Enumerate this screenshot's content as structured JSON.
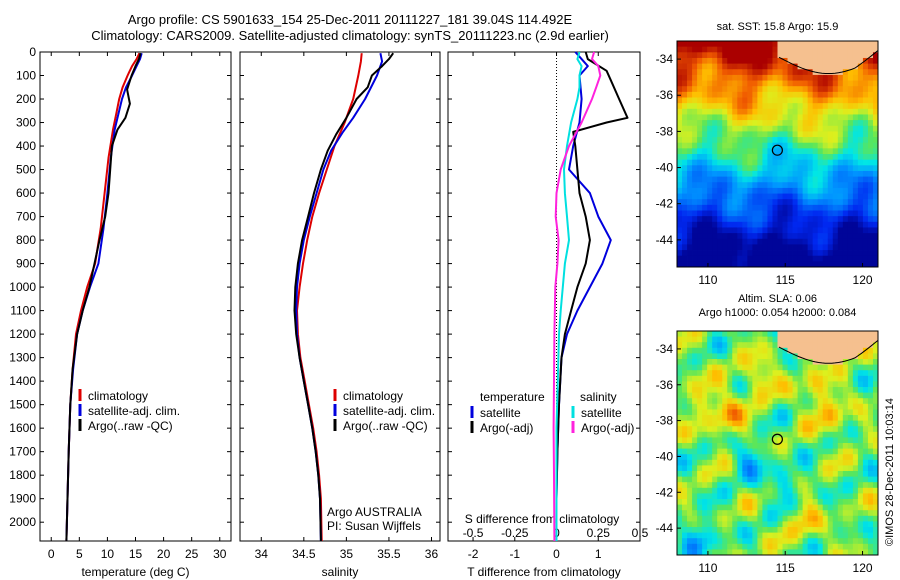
{
  "header": {
    "title_line1": "Argo profile: CS 5901633_154 25-Dec-2011 20111227_181 39.04S 114.492E",
    "title_line2": "Climatology: CARS2009. Satellite-adjusted climatology: synTS_20111223.nc (2.9d earlier)"
  },
  "colors": {
    "climatology": "#dd0000",
    "satellite": "#0000dd",
    "argo": "#000000",
    "sat_t_diff": "#00e0e0",
    "sat_s_diff": "#ff22dd",
    "land": "#f5c08f"
  },
  "chart_data": [
    {
      "type": "line",
      "name": "temperature-profile",
      "xlabel": "temperature (deg C)",
      "ylabel": "",
      "xlim": [
        -2,
        32
      ],
      "ylim": [
        2080,
        0
      ],
      "y_reversed": true,
      "xticks": [
        0,
        5,
        10,
        15,
        20,
        25,
        30
      ],
      "yticks": [
        0,
        100,
        200,
        300,
        400,
        500,
        600,
        700,
        800,
        900,
        1000,
        1100,
        1200,
        1300,
        1400,
        1500,
        1600,
        1700,
        1800,
        1900,
        2000
      ],
      "legend": [
        "climatology",
        "satellite-adj. clim.",
        "Argo(..raw -QC)"
      ],
      "series": [
        {
          "name": "climatology",
          "color": "#dd0000",
          "points": [
            [
              15.7,
              5
            ],
            [
              15.2,
              30
            ],
            [
              14.4,
              60
            ],
            [
              13.6,
              100
            ],
            [
              12.7,
              150
            ],
            [
              12.1,
              200
            ],
            [
              11.6,
              260
            ],
            [
              11.0,
              330
            ],
            [
              10.2,
              450
            ],
            [
              9.5,
              600
            ],
            [
              8.8,
              750
            ],
            [
              7.8,
              900
            ],
            [
              6.4,
              1000
            ],
            [
              5.3,
              1100
            ],
            [
              4.4,
              1200
            ],
            [
              3.8,
              1350
            ],
            [
              3.4,
              1500
            ],
            [
              3.1,
              1700
            ],
            [
              2.9,
              1900
            ],
            [
              2.7,
              2080
            ]
          ]
        },
        {
          "name": "satellite-adj. clim.",
          "color": "#0000dd",
          "points": [
            [
              16.1,
              5
            ],
            [
              15.8,
              30
            ],
            [
              15.2,
              60
            ],
            [
              14.4,
              100
            ],
            [
              13.3,
              150
            ],
            [
              12.6,
              200
            ],
            [
              12.0,
              260
            ],
            [
              11.3,
              330
            ],
            [
              10.6,
              450
            ],
            [
              10.0,
              600
            ],
            [
              9.3,
              750
            ],
            [
              8.4,
              900
            ],
            [
              6.9,
              1000
            ],
            [
              5.6,
              1100
            ],
            [
              4.6,
              1200
            ],
            [
              3.9,
              1350
            ],
            [
              3.4,
              1500
            ],
            [
              3.1,
              1700
            ],
            [
              2.9,
              1900
            ],
            [
              2.7,
              2080
            ]
          ]
        },
        {
          "name": "Argo(..raw -QC)",
          "color": "#000000",
          "points": [
            [
              15.9,
              5
            ],
            [
              15.6,
              30
            ],
            [
              15.0,
              60
            ],
            [
              14.3,
              100
            ],
            [
              13.5,
              160
            ],
            [
              14.0,
              220
            ],
            [
              13.2,
              280
            ],
            [
              11.8,
              330
            ],
            [
              10.8,
              400
            ],
            [
              10.5,
              500
            ],
            [
              10.2,
              600
            ],
            [
              9.6,
              700
            ],
            [
              8.6,
              800
            ],
            [
              7.7,
              900
            ],
            [
              6.8,
              1000
            ],
            [
              5.6,
              1100
            ],
            [
              4.6,
              1200
            ],
            [
              3.8,
              1350
            ],
            [
              3.4,
              1500
            ],
            [
              3.1,
              1700
            ],
            [
              2.9,
              1900
            ],
            [
              2.7,
              2080
            ]
          ]
        }
      ]
    },
    {
      "type": "line",
      "name": "salinity-profile",
      "xlabel": "salinity",
      "ylabel": "",
      "xlim": [
        33.75,
        36.1
      ],
      "ylim": [
        2080,
        0
      ],
      "y_reversed": true,
      "xticks": [
        34,
        34.5,
        35,
        35.5,
        36
      ],
      "yticks": [
        0,
        100,
        200,
        300,
        400,
        500,
        600,
        700,
        800,
        900,
        1000,
        1100,
        1200,
        1300,
        1400,
        1500,
        1600,
        1700,
        1800,
        1900,
        2000
      ],
      "legend": [
        "climatology",
        "satellite-adj. clim.",
        "Argo(..raw -QC)"
      ],
      "annotations": [
        "Argo AUSTRALIA",
        "PI: Susan Wijffels"
      ],
      "series": [
        {
          "name": "climatology",
          "color": "#dd0000",
          "points": [
            [
              35.18,
              5
            ],
            [
              35.17,
              40
            ],
            [
              35.14,
              100
            ],
            [
              35.08,
              200
            ],
            [
              34.98,
              300
            ],
            [
              34.86,
              400
            ],
            [
              34.77,
              500
            ],
            [
              34.68,
              600
            ],
            [
              34.6,
              700
            ],
            [
              34.54,
              800
            ],
            [
              34.49,
              900
            ],
            [
              34.45,
              1000
            ],
            [
              34.42,
              1100
            ],
            [
              34.43,
              1200
            ],
            [
              34.46,
              1300
            ],
            [
              34.51,
              1400
            ],
            [
              34.56,
              1500
            ],
            [
              34.61,
              1600
            ],
            [
              34.65,
              1700
            ],
            [
              34.68,
              1800
            ],
            [
              34.7,
              1900
            ],
            [
              34.71,
              2080
            ]
          ]
        },
        {
          "name": "satellite-adj. clim.",
          "color": "#0000dd",
          "points": [
            [
              35.4,
              5
            ],
            [
              35.42,
              40
            ],
            [
              35.36,
              100
            ],
            [
              35.22,
              200
            ],
            [
              35.08,
              280
            ],
            [
              34.96,
              340
            ],
            [
              34.82,
              420
            ],
            [
              34.73,
              500
            ],
            [
              34.65,
              600
            ],
            [
              34.57,
              700
            ],
            [
              34.5,
              800
            ],
            [
              34.45,
              900
            ],
            [
              34.42,
              1000
            ],
            [
              34.41,
              1100
            ],
            [
              34.42,
              1200
            ],
            [
              34.45,
              1300
            ],
            [
              34.5,
              1400
            ],
            [
              34.55,
              1500
            ],
            [
              34.6,
              1600
            ],
            [
              34.64,
              1700
            ],
            [
              34.67,
              1800
            ],
            [
              34.69,
              1900
            ],
            [
              34.7,
              2080
            ]
          ]
        },
        {
          "name": "Argo(..raw -QC)",
          "color": "#000000",
          "points": [
            [
              35.55,
              5
            ],
            [
              35.5,
              30
            ],
            [
              35.42,
              60
            ],
            [
              35.3,
              100
            ],
            [
              35.25,
              150
            ],
            [
              35.12,
              200
            ],
            [
              35.0,
              280
            ],
            [
              34.88,
              350
            ],
            [
              34.78,
              420
            ],
            [
              34.7,
              500
            ],
            [
              34.62,
              600
            ],
            [
              34.55,
              700
            ],
            [
              34.48,
              800
            ],
            [
              34.43,
              900
            ],
            [
              34.4,
              1000
            ],
            [
              34.39,
              1100
            ],
            [
              34.41,
              1200
            ],
            [
              34.45,
              1300
            ],
            [
              34.5,
              1400
            ],
            [
              34.55,
              1500
            ],
            [
              34.6,
              1600
            ],
            [
              34.64,
              1700
            ],
            [
              34.67,
              1800
            ],
            [
              34.69,
              1900
            ],
            [
              34.7,
              2080
            ]
          ]
        }
      ]
    },
    {
      "type": "line",
      "name": "difference-from-climatology",
      "xlabel": "T difference from climatology",
      "xlabel_top": "S difference from climatology",
      "xlim": [
        -2.6,
        2.0
      ],
      "ylim": [
        2080,
        0
      ],
      "y_reversed": true,
      "xticks": [
        -2,
        -1,
        0,
        1
      ],
      "xtick_labels": [
        "-2",
        "-1",
        "0",
        "1"
      ],
      "sticks": [
        "-0.5",
        "-0.25",
        "0",
        "0.25",
        "0.5"
      ],
      "sticks_pos": [
        -2,
        -1,
        0,
        1,
        2
      ],
      "yticks": [
        0,
        100,
        200,
        300,
        400,
        500,
        600,
        700,
        800,
        900,
        1000,
        1100,
        1200,
        1300,
        1400,
        1500,
        1600,
        1700,
        1800,
        1900,
        2000
      ],
      "legend_temperature": {
        "title": "temperature",
        "items": [
          "satellite",
          "Argo(-adj)"
        ]
      },
      "legend_salinity": {
        "title": "salinity",
        "items": [
          "satellite",
          "Argo(-adj)"
        ]
      },
      "series": [
        {
          "name": "temperature satellite",
          "color": "#0000dd",
          "points": [
            [
              0.45,
              0
            ],
            [
              0.6,
              30
            ],
            [
              0.75,
              60
            ],
            [
              0.55,
              100
            ],
            [
              0.6,
              200
            ],
            [
              0.55,
              300
            ],
            [
              0.4,
              400
            ],
            [
              0.3,
              500
            ],
            [
              0.8,
              600
            ],
            [
              1.0,
              700
            ],
            [
              1.3,
              800
            ],
            [
              1.1,
              900
            ],
            [
              0.8,
              1000
            ],
            [
              0.5,
              1100
            ],
            [
              0.25,
              1200
            ],
            [
              0.12,
              1300
            ],
            [
              0.06,
              1500
            ],
            [
              0.02,
              1700
            ],
            [
              0.0,
              1900
            ],
            [
              0.0,
              2080
            ]
          ]
        },
        {
          "name": "temperature Argo(-adj)",
          "color": "#000000",
          "points": [
            [
              0.7,
              0
            ],
            [
              0.75,
              30
            ],
            [
              1.2,
              80
            ],
            [
              1.3,
              120
            ],
            [
              1.5,
              200
            ],
            [
              1.7,
              280
            ],
            [
              1.2,
              300
            ],
            [
              0.4,
              340
            ],
            [
              0.45,
              400
            ],
            [
              0.5,
              500
            ],
            [
              0.55,
              600
            ],
            [
              0.7,
              700
            ],
            [
              0.8,
              800
            ],
            [
              0.7,
              900
            ],
            [
              0.5,
              1000
            ],
            [
              0.35,
              1100
            ],
            [
              0.2,
              1200
            ],
            [
              0.12,
              1300
            ],
            [
              0.06,
              1500
            ],
            [
              0.02,
              1700
            ],
            [
              0.0,
              1900
            ],
            [
              0.0,
              2080
            ]
          ]
        },
        {
          "name": "salinity satellite",
          "color": "#00e0e0",
          "points": [
            [
              0.55,
              0
            ],
            [
              0.5,
              30
            ],
            [
              0.6,
              60
            ],
            [
              0.55,
              100
            ],
            [
              0.55,
              150
            ],
            [
              0.5,
              200
            ],
            [
              0.35,
              300
            ],
            [
              0.25,
              400
            ],
            [
              0.18,
              500
            ],
            [
              0.2,
              600
            ],
            [
              0.25,
              700
            ],
            [
              0.3,
              800
            ],
            [
              0.2,
              900
            ],
            [
              0.15,
              1000
            ],
            [
              0.1,
              1100
            ],
            [
              0.06,
              1200
            ],
            [
              0.03,
              1400
            ],
            [
              0.0,
              1600
            ],
            [
              0.0,
              1800
            ],
            [
              0.0,
              2080
            ]
          ]
        },
        {
          "name": "salinity Argo(-adj)",
          "color": "#ff22dd",
          "points": [
            [
              0.9,
              0
            ],
            [
              0.85,
              30
            ],
            [
              1.0,
              60
            ],
            [
              1.05,
              100
            ],
            [
              0.95,
              150
            ],
            [
              0.85,
              200
            ],
            [
              0.6,
              300
            ],
            [
              0.3,
              400
            ],
            [
              0.1,
              500
            ],
            [
              0.0,
              600
            ],
            [
              -0.02,
              700
            ],
            [
              0.05,
              800
            ],
            [
              0.02,
              900
            ],
            [
              -0.03,
              1000
            ],
            [
              -0.05,
              1200
            ],
            [
              -0.06,
              1400
            ],
            [
              -0.07,
              1600
            ],
            [
              -0.06,
              1800
            ],
            [
              -0.05,
              2080
            ]
          ]
        }
      ]
    },
    {
      "type": "heatmap",
      "name": "sat-sst-map",
      "title": "sat. SST: 15.8 Argo: 15.9",
      "xlim": [
        108,
        121
      ],
      "ylim": [
        -45.5,
        -33
      ],
      "xticks": [
        110,
        115,
        120
      ],
      "yticks": [
        -34,
        -36,
        -38,
        -40,
        -42,
        -44
      ],
      "argo_position": [
        114.492,
        -39.04
      ]
    },
    {
      "type": "heatmap",
      "name": "sla-map",
      "title_line1": "Altim. SLA: 0.06",
      "title_line2": "Argo h1000: 0.054 h2000: 0.084",
      "xlim": [
        108,
        121
      ],
      "ylim": [
        -45.5,
        -33
      ],
      "xticks": [
        110,
        115,
        120
      ],
      "yticks": [
        -34,
        -36,
        -38,
        -40,
        -42,
        -44
      ],
      "argo_position": [
        114.492,
        -39.04
      ]
    }
  ],
  "credit": "©IMOS 28-Dec-2011 10:03:14"
}
